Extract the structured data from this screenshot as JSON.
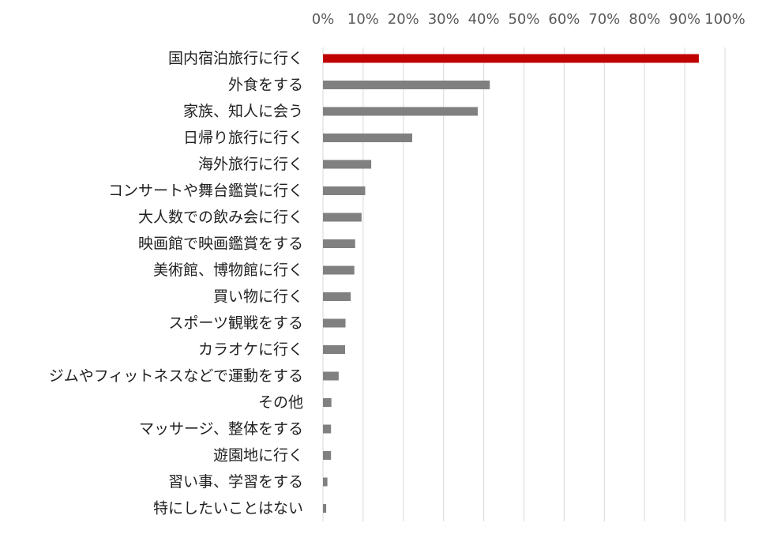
{
  "chart_data": {
    "type": "bar",
    "orientation": "horizontal",
    "title": "",
    "xlabel": "",
    "ylabel": "",
    "xlim": [
      0,
      100
    ],
    "tick_values": [
      0,
      10,
      20,
      30,
      40,
      50,
      60,
      70,
      80,
      90,
      100
    ],
    "tick_labels": [
      "0%",
      "10%",
      "20%",
      "30%",
      "40%",
      "50%",
      "60%",
      "70%",
      "80%",
      "90%",
      "100%"
    ],
    "axis_position": "top",
    "grid": true,
    "categories": [
      "国内宿泊旅行に行く",
      "外食をする",
      "家族、知人に会う",
      "日帰り旅行に行く",
      "海外旅行に行く",
      "コンサートや舞台鑑賞に行く",
      "大人数での飲み会に行く",
      "映画館で映画鑑賞をする",
      "美術館、博物館に行く",
      "買い物に行く",
      "スポーツ観戦をする",
      "カラオケに行く",
      "ジムやフィットネスなどで運動をする",
      "その他",
      "マッサージ、整体をする",
      "遊園地に行く",
      "習い事、学習をする",
      "特にしたいことはない"
    ],
    "values": [
      93.5,
      41.5,
      38.5,
      22.2,
      12.0,
      10.5,
      9.6,
      8.0,
      7.8,
      6.9,
      5.6,
      5.5,
      3.9,
      2.1,
      2.0,
      2.0,
      1.1,
      0.8
    ],
    "colors": {
      "highlight": "#c00000",
      "default": "#808080",
      "grid": "#d9d9d9"
    },
    "highlight_index": 0
  }
}
